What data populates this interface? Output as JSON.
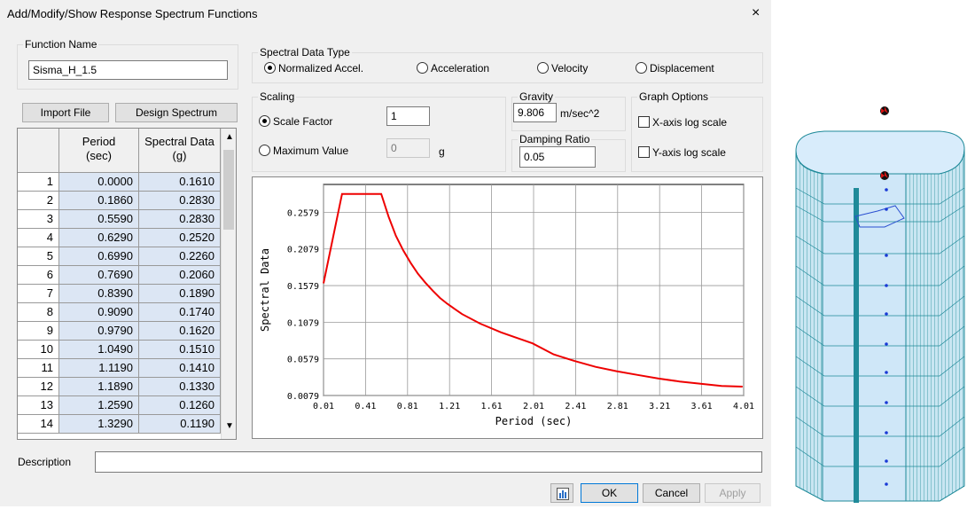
{
  "dialog": {
    "title": "Add/Modify/Show Response Spectrum Functions",
    "close": "×"
  },
  "function_name": {
    "legend": "Function Name",
    "value": "Sisma_H_1.5"
  },
  "buttons": {
    "import_file": "Import File",
    "design_spectrum": "Design Spectrum",
    "ok": "OK",
    "cancel": "Cancel",
    "apply": "Apply"
  },
  "spectral_type": {
    "legend": "Spectral Data Type",
    "options": [
      "Normalized Accel.",
      "Acceleration",
      "Velocity",
      "Displacement"
    ],
    "selected": "Normalized Accel."
  },
  "scaling": {
    "legend": "Scaling",
    "scale_factor_label": "Scale Factor",
    "scale_factor_value": "1",
    "max_value_label": "Maximum Value",
    "max_value_value": "0",
    "max_value_unit": "g",
    "selected": "Scale Factor"
  },
  "gravity": {
    "legend": "Gravity",
    "value": "9.806",
    "unit": "m/sec^2"
  },
  "damping": {
    "legend": "Damping Ratio",
    "value": "0.05"
  },
  "graph_options": {
    "legend": "Graph Options",
    "x_log": "X-axis log scale",
    "y_log": "Y-axis log scale",
    "x_log_checked": false,
    "y_log_checked": false
  },
  "table": {
    "col1": "Period",
    "col1_unit": "(sec)",
    "col2": "Spectral Data",
    "col2_unit": "(g)",
    "rows": [
      [
        "1",
        "0.0000",
        "0.1610"
      ],
      [
        "2",
        "0.1860",
        "0.2830"
      ],
      [
        "3",
        "0.5590",
        "0.2830"
      ],
      [
        "4",
        "0.6290",
        "0.2520"
      ],
      [
        "5",
        "0.6990",
        "0.2260"
      ],
      [
        "6",
        "0.7690",
        "0.2060"
      ],
      [
        "7",
        "0.8390",
        "0.1890"
      ],
      [
        "8",
        "0.9090",
        "0.1740"
      ],
      [
        "9",
        "0.9790",
        "0.1620"
      ],
      [
        "10",
        "1.0490",
        "0.1510"
      ],
      [
        "11",
        "1.1190",
        "0.1410"
      ],
      [
        "12",
        "1.1890",
        "0.1330"
      ],
      [
        "13",
        "1.2590",
        "0.1260"
      ],
      [
        "14",
        "1.3290",
        "0.1190"
      ]
    ]
  },
  "description": {
    "label": "Description",
    "value": ""
  },
  "chart_data": {
    "type": "line",
    "xlabel": "Period (sec)",
    "ylabel": "Spectral Data",
    "xticks": [
      "0.01",
      "0.41",
      "0.81",
      "1.21",
      "1.61",
      "2.01",
      "2.41",
      "2.81",
      "3.21",
      "3.61",
      "4.01"
    ],
    "yticks": [
      "0.0079",
      "0.0579",
      "0.1079",
      "0.1579",
      "0.2079",
      "0.2579"
    ],
    "xlim": [
      0.01,
      4.01
    ],
    "ylim": [
      0.0079,
      0.2959
    ],
    "grid": true,
    "series": [
      {
        "color": "#ee0000",
        "x": [
          0.0,
          0.186,
          0.559,
          0.629,
          0.699,
          0.769,
          0.839,
          0.909,
          0.979,
          1.049,
          1.119,
          1.189,
          1.259,
          1.329,
          1.5,
          1.7,
          1.9,
          2.0,
          2.2,
          2.4,
          2.6,
          2.8,
          3.0,
          3.2,
          3.4,
          3.6,
          3.8,
          4.0
        ],
        "y": [
          0.161,
          0.283,
          0.283,
          0.252,
          0.226,
          0.206,
          0.189,
          0.174,
          0.162,
          0.151,
          0.141,
          0.133,
          0.126,
          0.119,
          0.106,
          0.094,
          0.084,
          0.079,
          0.064,
          0.055,
          0.047,
          0.041,
          0.036,
          0.031,
          0.027,
          0.024,
          0.021,
          0.02
        ]
      }
    ]
  },
  "colors": {
    "plot_line": "#ee0000",
    "row_fill": "#dce6f4",
    "model_fill": "#d8ecfb",
    "model_edge": "#1f8a99"
  }
}
